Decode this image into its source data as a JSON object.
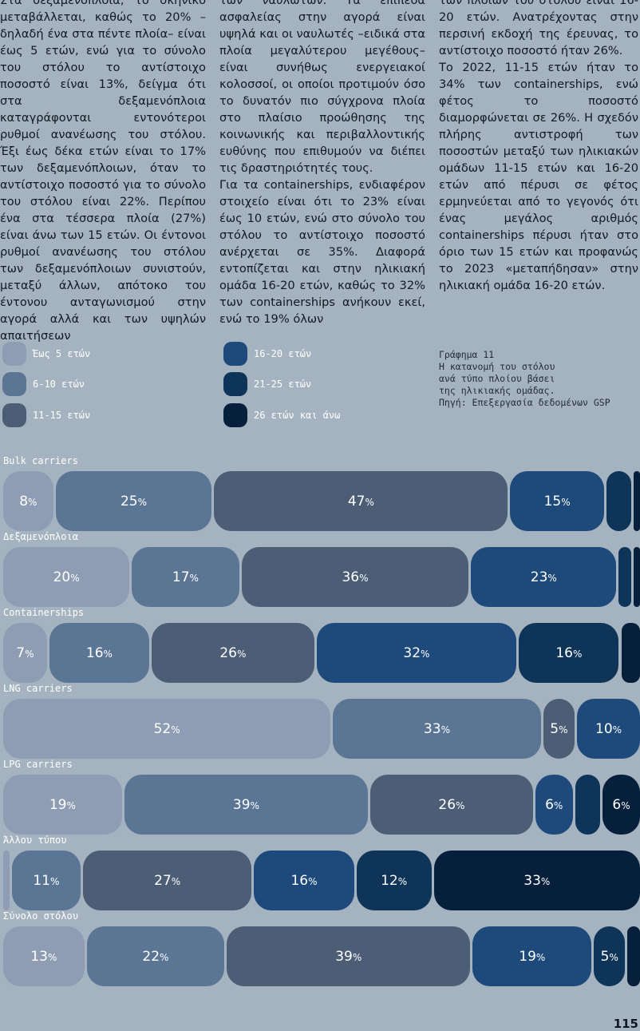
{
  "text_columns": {
    "col1": "Στα δεξαμενόπλοια, το σκηνικό μεταβάλλεται, καθώς το 20% –δηλαδή ένα στα πέντε πλοία– είναι έως 5 ετών, ενώ για το σύνολο του στόλου το αντίστοιχο ποσοστό είναι 13%, δείγμα ότι στα δεξαμενόπλοια καταγράφονται εντονότεροι ρυθμοί ανανέωσης του στόλου. Έξι έως δέκα ετών είναι το 17% των δεξαμενόπλοιων, όταν το αντίστοιχο ποσοστό για το σύνολο του στόλου είναι 22%. Περίπου ένα στα τέσσερα πλοία (27%) είναι άνω των 15 ετών. Οι έντονοι ρυθμοί ανανέωσης του στόλου των δεξαμενόπλοιων συνιστούν, μεταξύ άλλων, απότοκο του έντονου ανταγωνισμού στην αγορά αλλά και των υψηλών απαιτήσεων",
    "col2_p1": "των ναυλωτών. Τα επίπεδα ασφαλείας στην αγορά είναι υψηλά και οι ναυλωτές –ειδικά στα πλοία μεγαλύτερου μεγέθους– είναι συνήθως ενεργειακοί κολοσσοί, οι οποίοι προτιμούν όσο το δυνατόν πιο σύγχρονα πλοία στο πλαίσιο προώθησης της κοινωνικής και περιβαλλοντικής ευθύνης που επιθυμούν να διέπει τις δραστηριότητές τους.",
    "col2_p2": "Για τα containerships, ενδιαφέρον στοιχείο είναι ότι το 23% είναι έως 10 ετών, ενώ στο σύνολο του στόλου το αντίστοιχο ποσοστό ανέρχεται σε 35%. Διαφορά εντοπίζεται και στην ηλικιακή ομάδα 16-20 ετών, καθώς το 32% των containerships ανήκουν εκεί, ενώ το 19% όλων",
    "col3_p1": "των πλοίων του στόλου είναι 16-20 ετών. Ανατρέχοντας στην περσινή εκδοχή της έρευνας, το αντίστοιχο ποσοστό ήταν 26%.",
    "col3_p2": "Το 2022, 11-15 ετών ήταν το 34% των containerships, ενώ φέτος το ποσοστό διαμορφώνεται σε 26%. Η σχεδόν πλήρης αντιστροφή των ποσοστών μεταξύ των ηλικιακών ομάδων 11-15 ετών και 16-20 ετών από πέρυσι σε φέτος ερμηνεύεται από το γεγονός ότι ένας μεγάλος αριθμός containerships πέρυσι ήταν στο όριο των 15 ετών και προφανώς το 2023 «μεταπήδησαν» στην ηλικιακή ομάδα 16-20 ετών."
  },
  "legend": [
    {
      "label": "Έως 5 ετών",
      "color": "#8e9db3"
    },
    {
      "label": "6-10 ετών",
      "color": "#5b7595"
    },
    {
      "label": "11-15 ετών",
      "color": "#4c5e76"
    },
    {
      "label": "16-20 ετών",
      "color": "#1d4a7b"
    },
    {
      "label": "21-25 ετών",
      "color": "#0e3558"
    },
    {
      "label": "26 ετών και άνω",
      "color": "#061f3b"
    }
  ],
  "caption": "Γράφημα 11\nΗ κατανομή του στόλου\nανά τύπο πλοίου βάσει\nτης ηλικιακής ομάδας.\nΠηγή: Επεξεργασία δεδομένων GSP",
  "page_number": "115",
  "chart_data": {
    "type": "bar",
    "stacked": true,
    "orientation": "horizontal",
    "unit": "%",
    "categories": [
      "Bulk carriers",
      "Δεξαμενόπλοια",
      "Containerships",
      "LNG carriers",
      "LPG carriers",
      "Άλλου τύπου",
      "Σύνολο στόλου"
    ],
    "series": [
      {
        "name": "Έως 5 ετών",
        "values": [
          8,
          20,
          7,
          52,
          19,
          1,
          13
        ],
        "labels": [
          "8",
          "20",
          "7",
          "52",
          "19",
          "",
          "13"
        ]
      },
      {
        "name": "6-10 ετών",
        "values": [
          25,
          17,
          16,
          33,
          39,
          11,
          22
        ],
        "labels": [
          "25",
          "17",
          "16",
          "33",
          "39",
          "11",
          "22"
        ]
      },
      {
        "name": "11-15 ετών",
        "values": [
          47,
          36,
          26,
          5,
          26,
          27,
          39
        ],
        "labels": [
          "47",
          "36",
          "26",
          "5",
          "26",
          "27",
          "39"
        ]
      },
      {
        "name": "16-20 ετών",
        "values": [
          15,
          23,
          32,
          10,
          6,
          16,
          19
        ],
        "labels": [
          "15",
          "23",
          "32",
          "10",
          "6",
          "16",
          "19"
        ]
      },
      {
        "name": "21-25 ετών",
        "values": [
          4,
          2,
          16,
          0,
          4,
          12,
          5
        ],
        "labels": [
          "",
          "",
          "16",
          "",
          "",
          "12",
          "5"
        ]
      },
      {
        "name": "26 ετών και άνω",
        "values": [
          1,
          1,
          3,
          0,
          6,
          33,
          2
        ],
        "labels": [
          "",
          "",
          "",
          "",
          "6",
          "33",
          ""
        ]
      }
    ]
  }
}
